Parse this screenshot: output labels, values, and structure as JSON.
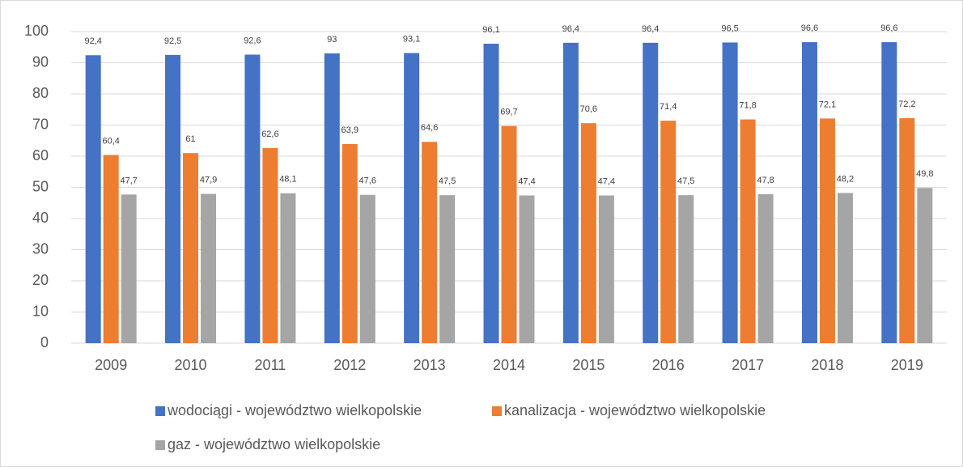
{
  "chart_data": {
    "type": "bar",
    "categories": [
      "2009",
      "2010",
      "2011",
      "2012",
      "2013",
      "2014",
      "2015",
      "2016",
      "2017",
      "2018",
      "2019"
    ],
    "series": [
      {
        "name": "wodociągi - województwo wielkopolskie",
        "color": "#4472c4",
        "values": [
          92.4,
          92.5,
          92.6,
          93,
          93.1,
          96.1,
          96.4,
          96.4,
          96.5,
          96.6,
          96.6
        ],
        "value_labels": [
          "92,4",
          "92,5",
          "92,6",
          "93",
          "93,1",
          "96,1",
          "96,4",
          "96,4",
          "96,5",
          "96,6",
          "96,6"
        ]
      },
      {
        "name": "kanalizacja - województwo wielkopolskie",
        "color": "#ed7d31",
        "values": [
          60.4,
          61,
          62.6,
          63.9,
          64.6,
          69.7,
          70.6,
          71.4,
          71.8,
          72.1,
          72.2
        ],
        "value_labels": [
          "60,4",
          "61",
          "62,6",
          "63,9",
          "64,6",
          "69,7",
          "70,6",
          "71,4",
          "71,8",
          "72,1",
          "72,2"
        ]
      },
      {
        "name": "gaz - województwo wielkopolskie",
        "color": "#a5a5a5",
        "values": [
          47.7,
          47.9,
          48.1,
          47.6,
          47.5,
          47.4,
          47.4,
          47.5,
          47.8,
          48.2,
          49.8
        ],
        "value_labels": [
          "47,7",
          "47,9",
          "48,1",
          "47,6",
          "47,5",
          "47,4",
          "47,4",
          "47,5",
          "47,8",
          "48,2",
          "49,8"
        ]
      }
    ],
    "ylim": [
      0,
      100
    ],
    "yticks": [
      0,
      10,
      20,
      30,
      40,
      50,
      60,
      70,
      80,
      90,
      100
    ],
    "grid": true,
    "legend": "bottom"
  }
}
